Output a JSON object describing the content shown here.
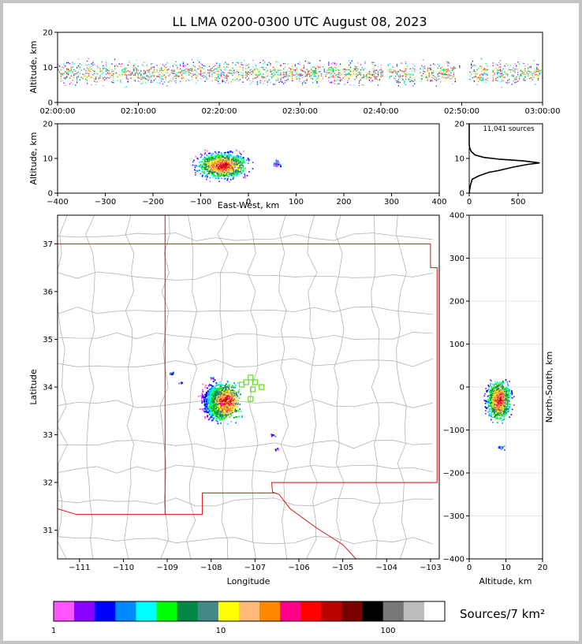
{
  "title": "LL LMA 0200-0300 UTC August 08, 2023",
  "colors": {
    "frame": "#c4c4c4",
    "state_lines": "#dd1111",
    "county_lines": "#b4b4b4",
    "grid": "#e4e4e4",
    "station_marker": "#66dd22"
  },
  "chart_data": [
    {
      "id": "time-altitude",
      "type": "scatter",
      "xlabel": "",
      "ylabel": "Altitude, km",
      "xticks": [
        "02:00:00",
        "02:10:00",
        "02:20:00",
        "02:30:00",
        "02:40:00",
        "02:50:00",
        "03:00:00"
      ],
      "xlim_minutes": [
        0,
        60
      ],
      "ylim": [
        0,
        20
      ],
      "yticks": [
        0,
        10,
        20
      ],
      "activity_minutes": [
        0,
        2,
        4,
        6,
        8,
        10,
        12,
        14,
        16,
        18,
        20,
        21,
        22,
        24,
        26,
        28,
        30,
        31,
        32,
        33,
        34,
        35,
        36,
        37,
        38,
        39,
        42,
        43,
        46,
        48,
        52,
        55,
        57,
        58,
        59
      ],
      "typical_altitude_km": [
        5,
        12
      ]
    },
    {
      "id": "ew-altitude",
      "type": "heatmap",
      "xlabel": "East-West, km",
      "ylabel": "Altitude, km",
      "xlim": [
        -400,
        400
      ],
      "xticks": [
        -400,
        -300,
        -200,
        -100,
        0,
        100,
        200,
        300,
        400
      ],
      "ylim": [
        0,
        20
      ],
      "yticks": [
        0,
        10,
        20
      ],
      "core_x_km": [
        -130,
        10
      ],
      "core_altitude_km": [
        4,
        12
      ]
    },
    {
      "id": "altitude-histogram",
      "type": "line",
      "annotation": "11,041 sources",
      "xlim": [
        0,
        750
      ],
      "xticks": [
        0,
        500
      ],
      "ylim": [
        0,
        20
      ],
      "yticks": [
        0,
        10,
        20
      ],
      "profile": [
        [
          0,
          0
        ],
        [
          10,
          2
        ],
        [
          30,
          4
        ],
        [
          100,
          5
        ],
        [
          200,
          6
        ],
        [
          300,
          6.5
        ],
        [
          450,
          7.5
        ],
        [
          600,
          8.3
        ],
        [
          720,
          8.7
        ],
        [
          550,
          9.3
        ],
        [
          300,
          9.8
        ],
        [
          150,
          10.3
        ],
        [
          60,
          11
        ],
        [
          20,
          12
        ],
        [
          5,
          13
        ],
        [
          0,
          14
        ],
        [
          0,
          20
        ]
      ]
    },
    {
      "id": "plan-view",
      "type": "heatmap",
      "xlabel": "Longitude",
      "ylabel": "Latitude",
      "xlim": [
        -111.5,
        -102.8
      ],
      "xticks": [
        -111,
        -110,
        -109,
        -108,
        -107,
        -106,
        -105,
        -104,
        -103
      ],
      "ylim": [
        30.4,
        37.6
      ],
      "yticks": [
        31,
        32,
        33,
        34,
        35,
        36,
        37
      ],
      "core_lon": [
        -108.4,
        -107.2
      ],
      "core_lat": [
        33.2,
        34.1
      ],
      "stations": [
        [
          -107.1,
          34.2
        ],
        [
          -107.0,
          34.1
        ],
        [
          -107.2,
          34.1
        ],
        [
          -106.85,
          34.0
        ],
        [
          -107.05,
          33.95
        ],
        [
          -107.1,
          33.75
        ],
        [
          -107.3,
          34.05
        ]
      ]
    },
    {
      "id": "altitude-ns",
      "type": "heatmap",
      "xlabel": "Altitude, km",
      "ylabel": "North-South, km",
      "xlim": [
        0,
        20
      ],
      "xticks": [
        0,
        10,
        20
      ],
      "ylim": [
        -400,
        400
      ],
      "yticks": [
        -400,
        -300,
        -200,
        -100,
        0,
        100,
        200,
        300,
        400
      ],
      "core_altitude_km": [
        4,
        12
      ],
      "core_ns_km": [
        -80,
        30
      ]
    }
  ],
  "colorbar": {
    "label": "Sources/7 km²",
    "tick_labels": [
      "1",
      "10",
      "100"
    ],
    "colors": [
      "#ff55ff",
      "#8800ff",
      "#0000ff",
      "#0088ff",
      "#00ffff",
      "#00ff00",
      "#008844",
      "#448888",
      "#ffff00",
      "#ffbb77",
      "#ff8800",
      "#ff0088",
      "#ff0000",
      "#bb0000",
      "#770000",
      "#000000",
      "#777777",
      "#bbbbbb",
      "#ffffff"
    ]
  }
}
